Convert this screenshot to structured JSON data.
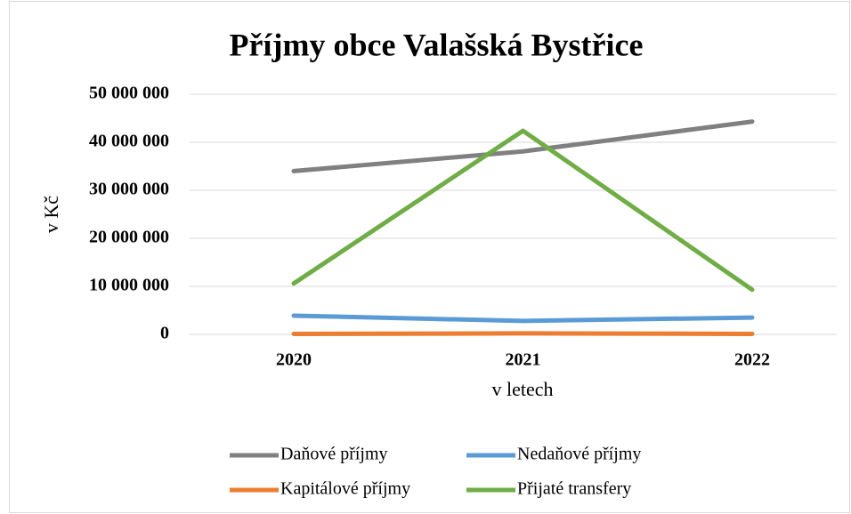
{
  "chart_data": {
    "type": "line",
    "title": "Příjmy obce Valašská Bystřice",
    "x_label": "v letech",
    "y_label": "v Kč",
    "categories": [
      "2020",
      "2021",
      "2022"
    ],
    "series": [
      {
        "name": "Daňové příjmy",
        "color": "#808080",
        "values": [
          34000000,
          38100000,
          44300000
        ]
      },
      {
        "name": "Nedaňové příjmy",
        "color": "#5b9bd5",
        "values": [
          3900000,
          2800000,
          3500000
        ]
      },
      {
        "name": "Kapitálové příjmy",
        "color": "#ed7d31",
        "values": [
          100000,
          200000,
          100000
        ]
      },
      {
        "name": "Přijaté transfery",
        "color": "#70ad47",
        "values": [
          10600000,
          42400000,
          9300000
        ]
      }
    ],
    "ylim": [
      0,
      50000000
    ],
    "yticks": [
      0,
      {
        "value": 10000000,
        "label": "10 000 000"
      },
      {
        "value": 20000000,
        "label": "20 000 000"
      },
      {
        "value": 30000000,
        "label": "30 000 000"
      },
      {
        "value": 40000000,
        "label": "40 000 000"
      },
      {
        "value": 50000000,
        "label": "50 000 000"
      }
    ],
    "grid": true,
    "legend": "bottom"
  }
}
